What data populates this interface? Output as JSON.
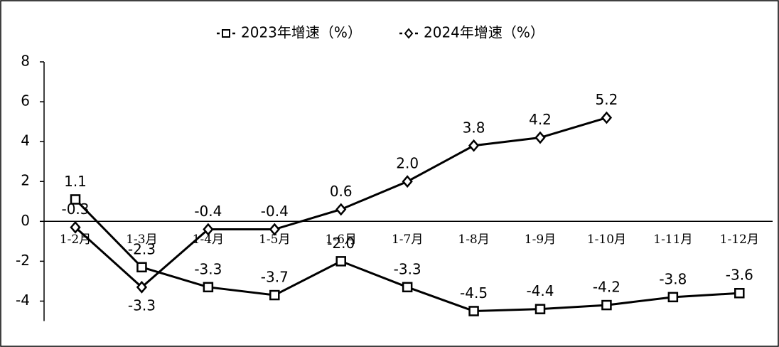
{
  "chart_data": {
    "type": "line",
    "categories": [
      "1-2月",
      "1-3月",
      "1-4月",
      "1-5月",
      "1-6月",
      "1-7月",
      "1-8月",
      "1-9月",
      "1-10月",
      "1-11月",
      "1-12月"
    ],
    "series": [
      {
        "name": "2023年增速（%）",
        "color": "#000000",
        "marker": "square",
        "values": [
          1.1,
          -2.3,
          -3.3,
          -3.7,
          -2.0,
          -3.3,
          -4.5,
          -4.4,
          -4.2,
          -3.8,
          -3.6
        ],
        "value_labels": [
          "1.1",
          "-2.3",
          "-3.3",
          "-3.7",
          "-2.0",
          "-3.3",
          "-4.5",
          "-4.4",
          "-4.2",
          "-3.8",
          "-3.6"
        ]
      },
      {
        "name": "2024年增速（%）",
        "color": "#000000",
        "marker": "diamond",
        "values": [
          -0.3,
          -3.3,
          -0.4,
          -0.4,
          0.6,
          2.0,
          3.8,
          4.2,
          5.2,
          null,
          null
        ],
        "value_labels": [
          "-0.3",
          "-3.3",
          "-0.4",
          "-0.4",
          "0.6",
          "2.0",
          "3.8",
          "4.2",
          "5.2",
          null,
          null
        ]
      }
    ],
    "ylim": [
      -5,
      8
    ],
    "yticks": [
      -4,
      -2,
      0,
      2,
      4,
      6,
      8
    ],
    "grid": false,
    "legend": "top"
  }
}
